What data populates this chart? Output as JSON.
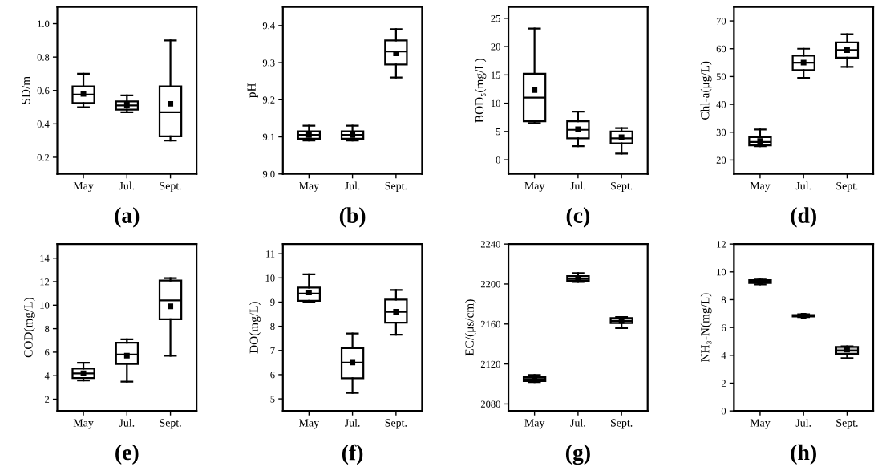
{
  "chart_data": [
    {
      "type": "box",
      "ylabel": "SD/m",
      "categories": [
        "May",
        "Jul.",
        "Sept."
      ],
      "ylim": [
        0.1,
        1.1
      ],
      "yticks": [
        0.2,
        0.4,
        0.6,
        0.8,
        {
          "value": 1,
          "label": "1.0"
        }
      ],
      "annotations": [
        "(a)"
      ],
      "series": [
        {
          "color": "#ffffff",
          "boxes": [
            {
              "low": 0.5,
              "q1": 0.525,
              "median": 0.575,
              "q3": 0.625,
              "high": 0.7,
              "mean": 0.58
            },
            {
              "low": 0.47,
              "q1": 0.485,
              "median": 0.51,
              "q3": 0.535,
              "high": 0.57,
              "mean": 0.515
            },
            {
              "low": 0.3,
              "q1": 0.325,
              "median": 0.47,
              "q3": 0.625,
              "high": 0.9,
              "mean": 0.52
            }
          ]
        }
      ]
    },
    {
      "type": "box",
      "ylabel": "pH",
      "categories": [
        "May",
        "Jul.",
        "Sept."
      ],
      "ylim": [
        9.0,
        9.45
      ],
      "yticks": [
        {
          "value": 9,
          "label": "9.0"
        },
        9.1,
        9.2,
        9.3,
        9.4
      ],
      "annotations": [
        "(b)"
      ],
      "series": [
        {
          "color": "#ffffff",
          "boxes": [
            {
              "low": 9.09,
              "q1": 9.095,
              "median": 9.105,
              "q3": 9.115,
              "high": 9.13,
              "mean": 9.105
            },
            {
              "low": 9.09,
              "q1": 9.095,
              "median": 9.105,
              "q3": 9.115,
              "high": 9.13,
              "mean": 9.105
            },
            {
              "low": 9.26,
              "q1": 9.295,
              "median": 9.33,
              "q3": 9.36,
              "high": 9.39,
              "mean": 9.325
            }
          ]
        }
      ]
    },
    {
      "type": "box",
      "ylabel": "BOD₅(mg/L)",
      "categories": [
        "May",
        "Jul.",
        "Sept."
      ],
      "ylim": [
        -2.5,
        27
      ],
      "yticks": [
        0,
        5,
        10,
        15,
        20,
        25
      ],
      "annotations": [
        "(c)"
      ],
      "series": [
        {
          "color": "#ffffff",
          "boxes": [
            {
              "low": 6.5,
              "q1": 6.8,
              "median": 11,
              "q3": 15.2,
              "high": 23.2,
              "mean": 12.3
            },
            {
              "low": 2.4,
              "q1": 3.8,
              "median": 5.3,
              "q3": 6.8,
              "high": 8.5,
              "mean": 5.4
            },
            {
              "low": 1.1,
              "q1": 2.9,
              "median": 3.8,
              "q3": 5.0,
              "high": 5.6,
              "mean": 4.0
            }
          ]
        }
      ]
    },
    {
      "type": "box",
      "ylabel": "Chl-a(μg/L)",
      "categories": [
        "May",
        "Jul.",
        "Sept."
      ],
      "ylim": [
        15,
        75
      ],
      "yticks": [
        20,
        30,
        40,
        50,
        60,
        70
      ],
      "annotations": [
        "(d)"
      ],
      "series": [
        {
          "color": "#ffffff",
          "boxes": [
            {
              "low": 25,
              "q1": 25.3,
              "median": 26.5,
              "q3": 28.2,
              "high": 31,
              "mean": 26.8
            },
            {
              "low": 49.5,
              "q1": 52.3,
              "median": 55,
              "q3": 57.5,
              "high": 60,
              "mean": 55
            },
            {
              "low": 53.5,
              "q1": 56.8,
              "median": 59.5,
              "q3": 62.3,
              "high": 65.2,
              "mean": 59.5
            }
          ]
        }
      ]
    },
    {
      "type": "box",
      "ylabel": "COD(mg/L)",
      "categories": [
        "May",
        "Jul.",
        "Sept."
      ],
      "ylim": [
        1,
        15.2
      ],
      "yticks": [
        2,
        4,
        6,
        8,
        10,
        12,
        14
      ],
      "annotations": [
        "(e)"
      ],
      "series": [
        {
          "color": "#ffffff",
          "boxes": [
            {
              "low": 3.6,
              "q1": 3.8,
              "median": 4.2,
              "q3": 4.6,
              "high": 5.1,
              "mean": 4.2
            },
            {
              "low": 3.5,
              "q1": 5.0,
              "median": 5.8,
              "q3": 6.8,
              "high": 7.1,
              "mean": 5.7
            },
            {
              "low": 5.7,
              "q1": 8.8,
              "median": 10.4,
              "q3": 12.1,
              "high": 12.3,
              "mean": 9.9
            }
          ]
        }
      ]
    },
    {
      "type": "box",
      "ylabel": "DO(mg/L)",
      "categories": [
        "May",
        "Jul.",
        "Sept."
      ],
      "ylim": [
        4.5,
        11.4
      ],
      "yticks": [
        5,
        6,
        7,
        8,
        9,
        10,
        11
      ],
      "annotations": [
        "(f)"
      ],
      "series": [
        {
          "color": "#ffffff",
          "boxes": [
            {
              "low": 9.0,
              "q1": 9.05,
              "median": 9.35,
              "q3": 9.6,
              "high": 10.15,
              "mean": 9.4
            },
            {
              "low": 5.25,
              "q1": 5.85,
              "median": 6.5,
              "q3": 7.1,
              "high": 7.7,
              "mean": 6.5
            },
            {
              "low": 7.65,
              "q1": 8.15,
              "median": 8.6,
              "q3": 9.1,
              "high": 9.5,
              "mean": 8.6
            }
          ]
        }
      ]
    },
    {
      "type": "box",
      "ylabel": "EC/(μs/cm)",
      "categories": [
        "May",
        "Jul.",
        "Sept."
      ],
      "ylim": [
        2073,
        2240
      ],
      "yticks": [
        2080,
        2120,
        2160,
        2200,
        2240
      ],
      "annotations": [
        "(g)"
      ],
      "series": [
        {
          "color": "#bfbfbf",
          "boxes": [
            {
              "low": 2102,
              "q1": 2103,
              "median": 2105,
              "q3": 2107,
              "high": 2109,
              "mean": 2105
            },
            {
              "low": 2202,
              "q1": 2203,
              "median": 2205,
              "q3": 2208,
              "high": 2211,
              "mean": 2205
            },
            {
              "low": 2156,
              "q1": 2161,
              "median": 2163,
              "q3": 2166,
              "high": 2167,
              "mean": 2163
            }
          ]
        }
      ]
    },
    {
      "type": "box",
      "ylabel": "NH₃-N(mg/L)",
      "categories": [
        "May",
        "Jul.",
        "Sept."
      ],
      "ylim": [
        0,
        12
      ],
      "yticks": [
        0,
        2,
        4,
        6,
        8,
        10,
        12
      ],
      "annotations": [
        "(h)"
      ],
      "series": [
        {
          "color": "#bfbfbf",
          "boxes": [
            {
              "low": 9.1,
              "q1": 9.2,
              "median": 9.3,
              "q3": 9.4,
              "high": 9.45,
              "mean": 9.3
            },
            {
              "low": 6.75,
              "q1": 6.8,
              "median": 6.85,
              "q3": 6.9,
              "high": 6.95,
              "mean": 6.85
            },
            {
              "low": 3.8,
              "q1": 4.1,
              "median": 4.35,
              "q3": 4.6,
              "high": 4.65,
              "mean": 4.4
            }
          ]
        }
      ]
    }
  ]
}
